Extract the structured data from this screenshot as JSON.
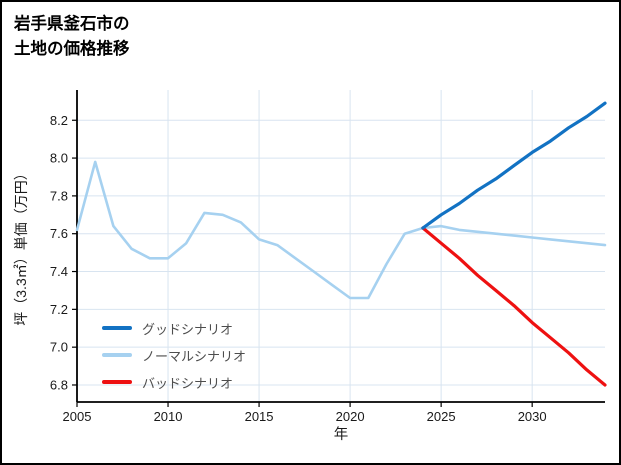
{
  "title": {
    "line1": "岩手県釜石市の",
    "line2": "土地の価格推移"
  },
  "chart_data": {
    "type": "line",
    "title": "岩手県釜石市の土地の価格推移",
    "xlabel": "年",
    "ylabel": "坪（3.3㎡）単価（万円）",
    "xlim": [
      2005,
      2034
    ],
    "ylim": [
      6.71,
      8.36
    ],
    "xticks": [
      2005,
      2010,
      2015,
      2020,
      2025,
      2030
    ],
    "yticks": [
      6.8,
      7.0,
      7.2,
      7.4,
      7.6,
      7.8,
      8.0,
      8.2
    ],
    "grid": true,
    "legend_position": "lower-left",
    "colors": {
      "good": "#1272c3",
      "normal": "#a6d1f0",
      "bad": "#ee1111",
      "grid": "#d8e4f0",
      "axis": "#000000",
      "tick_text": "#1a1a1a",
      "legend_text": "#4d4d4d"
    },
    "series": [
      {
        "name": "グッドシナリオ",
        "key": "good",
        "width": 3.2,
        "x": [
          2024,
          2025,
          2026,
          2027,
          2028,
          2029,
          2030,
          2031,
          2032,
          2033,
          2034
        ],
        "values": [
          7.63,
          7.7,
          7.76,
          7.83,
          7.89,
          7.96,
          8.03,
          8.09,
          8.16,
          8.22,
          8.29
        ]
      },
      {
        "name": "ノーマルシナリオ",
        "key": "normal",
        "width": 2.6,
        "x": [
          2005,
          2006,
          2007,
          2008,
          2009,
          2010,
          2011,
          2012,
          2013,
          2014,
          2015,
          2016,
          2017,
          2018,
          2019,
          2020,
          2021,
          2022,
          2023,
          2024,
          2025,
          2026,
          2027,
          2028,
          2029,
          2030,
          2031,
          2032,
          2033,
          2034
        ],
        "values": [
          7.62,
          7.98,
          7.64,
          7.52,
          7.47,
          7.47,
          7.55,
          7.71,
          7.7,
          7.66,
          7.57,
          7.54,
          7.47,
          7.4,
          7.33,
          7.26,
          7.26,
          7.44,
          7.6,
          7.63,
          7.64,
          7.62,
          7.61,
          7.6,
          7.59,
          7.58,
          7.57,
          7.56,
          7.55,
          7.54
        ]
      },
      {
        "name": "バッドシナリオ",
        "key": "bad",
        "width": 3.2,
        "x": [
          2024,
          2025,
          2026,
          2027,
          2028,
          2029,
          2030,
          2031,
          2032,
          2033,
          2034
        ],
        "values": [
          7.63,
          7.55,
          7.47,
          7.38,
          7.3,
          7.22,
          7.13,
          7.05,
          6.97,
          6.88,
          6.8
        ]
      }
    ]
  }
}
